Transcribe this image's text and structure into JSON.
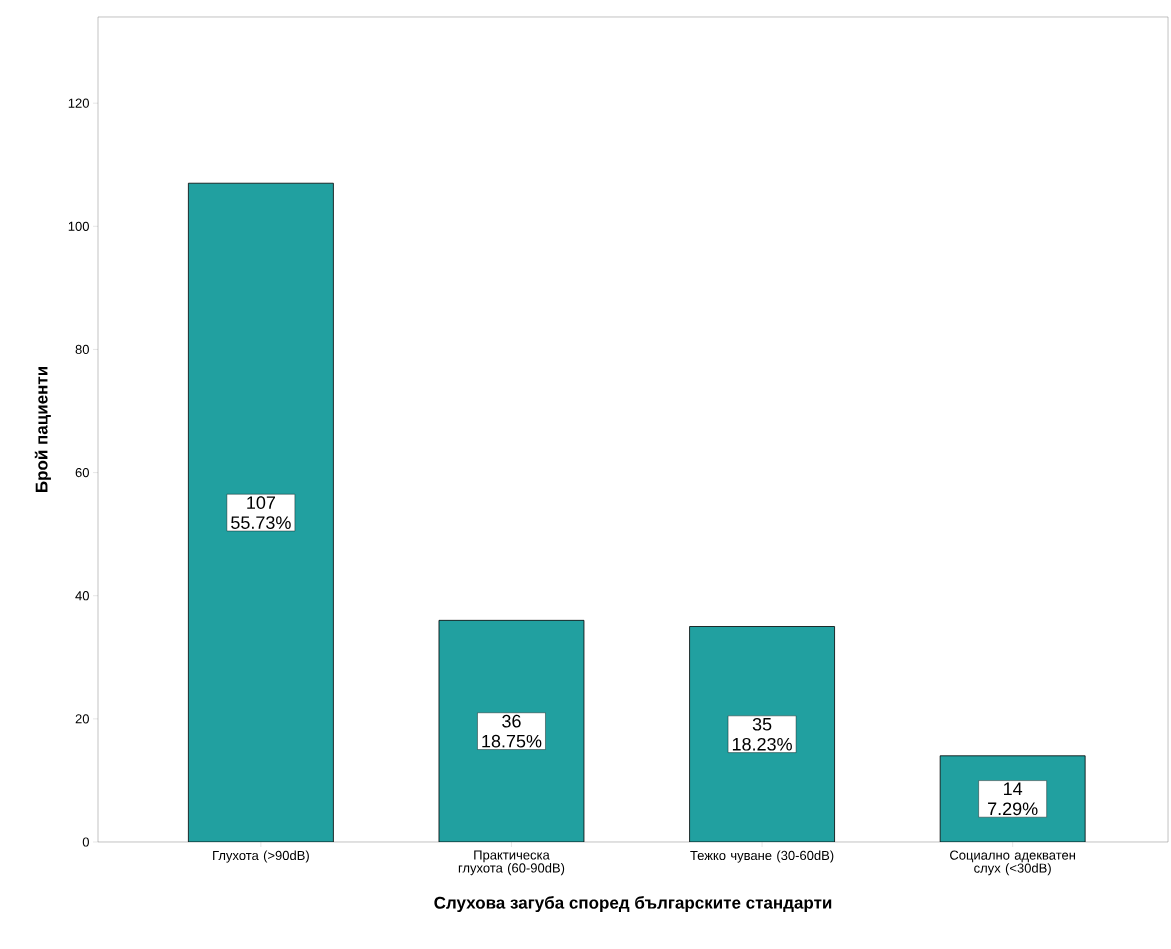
{
  "chart_data": {
    "type": "bar",
    "xlabel": "Слухова загуба според българските стандарти",
    "ylabel": "Брой пациенти",
    "categories": [
      "Глухота (>90dB)",
      "Практическа глухота (60-90dB)",
      "Тежко чуване (30-60dB)",
      "Социално адекватен слух (<30dB)"
    ],
    "values": [
      107,
      36,
      35,
      14
    ],
    "value_labels": [
      "107 55.73%",
      "36 18.75%",
      "35 18.23%",
      "14 7.29%"
    ],
    "color": "#21a0a0",
    "ylim": [
      0,
      134
    ],
    "yticks": [
      0,
      20,
      40,
      60,
      80,
      100,
      120
    ],
    "grid": false
  }
}
